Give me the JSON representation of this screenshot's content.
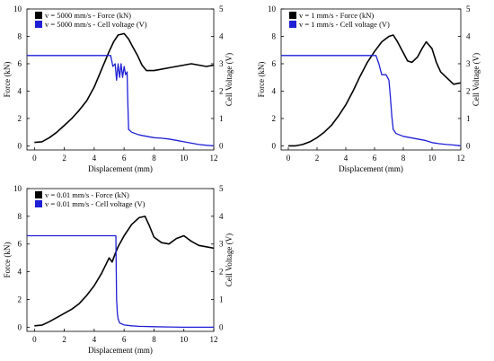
{
  "colors": {
    "force": "#000000",
    "voltage": "#1f1fd6"
  },
  "chart_data": [
    {
      "type": "line",
      "xlabel": "Displacement (mm)",
      "ylabel": "Force (kN)",
      "y2label": "Cell Voltage (V)",
      "xlim": [
        -0.5,
        12
      ],
      "ylim": [
        -0.3,
        10
      ],
      "y2lim": [
        -0.15,
        5
      ],
      "xticks": [
        0,
        2,
        4,
        6,
        8,
        10,
        12
      ],
      "yticks": [
        0,
        2,
        4,
        6,
        8,
        10
      ],
      "y2ticks": [
        0,
        1,
        2,
        3,
        4,
        5
      ],
      "legend": "top-left",
      "series": [
        {
          "name": "v = 5000 mm/s - Force (kN)",
          "axis": "left",
          "x": [
            0,
            0.5,
            1,
            1.5,
            2,
            2.5,
            3,
            3.5,
            4,
            4.5,
            5,
            5.3,
            5.6,
            6,
            6.3,
            6.6,
            6.9,
            7.2,
            7.5,
            8,
            8.5,
            9,
            9.5,
            10,
            10.5,
            11,
            11.5,
            12
          ],
          "y": [
            0.25,
            0.3,
            0.6,
            1.0,
            1.5,
            2.0,
            2.6,
            3.3,
            4.3,
            5.6,
            6.9,
            7.6,
            8.1,
            8.2,
            7.8,
            7.2,
            6.6,
            5.9,
            5.5,
            5.5,
            5.6,
            5.7,
            5.8,
            5.9,
            6.0,
            5.9,
            5.8,
            5.9
          ]
        },
        {
          "name": "v = 5000 mm/s - Cell voltage (V)",
          "axis": "right",
          "x": [
            -0.5,
            5.1,
            5.25,
            5.4,
            5.5,
            5.6,
            5.7,
            5.8,
            5.9,
            6.0,
            6.1,
            6.2,
            6.25,
            6.3,
            6.5,
            7,
            7.5,
            8,
            8.5,
            9,
            9.5,
            10,
            10.5,
            11,
            11.5,
            12
          ],
          "y": [
            3.3,
            3.3,
            2.9,
            3.0,
            2.4,
            3.0,
            2.5,
            3.0,
            2.5,
            2.9,
            2.6,
            2.7,
            1.6,
            0.6,
            0.5,
            0.4,
            0.35,
            0.3,
            0.28,
            0.25,
            0.2,
            0.15,
            0.1,
            0.05,
            0.02,
            0.0
          ]
        }
      ]
    },
    {
      "type": "line",
      "xlabel": "Displacement (mm)",
      "ylabel": "Force (kN)",
      "y2label": "Cell Voltage (V)",
      "xlim": [
        -0.5,
        12
      ],
      "ylim": [
        -0.3,
        10
      ],
      "y2lim": [
        -0.15,
        5
      ],
      "xticks": [
        0,
        2,
        4,
        6,
        8,
        10,
        12
      ],
      "yticks": [
        0,
        2,
        4,
        6,
        8,
        10
      ],
      "y2ticks": [
        0,
        1,
        2,
        3,
        4,
        5
      ],
      "legend": "top-left",
      "series": [
        {
          "name": "v = 1 mm/s - Force (kN)",
          "axis": "left",
          "x": [
            0,
            0.5,
            1,
            1.5,
            2,
            2.5,
            3,
            3.5,
            4,
            4.5,
            5,
            5.5,
            6,
            6.5,
            7,
            7.3,
            7.6,
            8,
            8.3,
            8.6,
            9,
            9.3,
            9.6,
            10,
            10.3,
            10.6,
            11,
            11.5,
            12
          ],
          "y": [
            0,
            0,
            0.1,
            0.3,
            0.6,
            1.0,
            1.5,
            2.2,
            3.0,
            4.0,
            5.1,
            6.1,
            6.9,
            7.6,
            8.0,
            8.1,
            7.6,
            6.8,
            6.2,
            6.1,
            6.5,
            7.1,
            7.6,
            7.1,
            6.1,
            5.4,
            5.0,
            4.5,
            4.6
          ]
        },
        {
          "name": "v = 1 mm/s - Cell voltage (V)",
          "axis": "right",
          "x": [
            -0.5,
            6.1,
            6.3,
            6.5,
            6.8,
            7.0,
            7.1,
            7.2,
            7.3,
            7.5,
            8,
            8.5,
            9,
            9.5,
            10,
            10.5,
            11,
            11.5,
            12
          ],
          "y": [
            3.3,
            3.3,
            3.0,
            2.6,
            2.6,
            2.4,
            1.8,
            1.1,
            0.6,
            0.45,
            0.35,
            0.3,
            0.25,
            0.2,
            0.12,
            0.08,
            0.05,
            0.03,
            0.0
          ]
        }
      ]
    },
    {
      "type": "line",
      "xlabel": "Displacement (mm)",
      "ylabel": "Force (kN)",
      "y2label": "Cell Voltage (V)",
      "xlim": [
        -0.5,
        12
      ],
      "ylim": [
        -0.3,
        10
      ],
      "y2lim": [
        -0.15,
        5
      ],
      "xticks": [
        0,
        2,
        4,
        6,
        8,
        10,
        12
      ],
      "yticks": [
        0,
        2,
        4,
        6,
        8,
        10
      ],
      "y2ticks": [
        0,
        1,
        2,
        3,
        4,
        5
      ],
      "legend": "top-left",
      "series": [
        {
          "name": "v = 0.01 mm/s - Force (kN)",
          "axis": "left",
          "x": [
            0,
            0.5,
            1,
            1.5,
            2,
            2.5,
            3,
            3.5,
            4,
            4.5,
            5,
            5.2,
            5.4,
            5.6,
            6,
            6.5,
            7,
            7.4,
            7.7,
            8,
            8.5,
            9,
            9.5,
            10,
            10.5,
            11,
            11.5,
            12
          ],
          "y": [
            0.1,
            0.15,
            0.4,
            0.7,
            1.0,
            1.3,
            1.7,
            2.3,
            3.0,
            3.9,
            5.0,
            4.7,
            5.3,
            5.8,
            6.6,
            7.4,
            7.9,
            8.0,
            7.3,
            6.5,
            6.1,
            6.0,
            6.4,
            6.6,
            6.2,
            5.9,
            5.8,
            5.7
          ]
        },
        {
          "name": "v = 0.01 mm/s - Cell voltage (V)",
          "axis": "right",
          "x": [
            -0.5,
            5.45,
            5.5,
            5.55,
            5.6,
            5.7,
            6,
            6.5,
            7,
            8,
            9,
            10,
            11,
            12
          ],
          "y": [
            3.3,
            3.3,
            1.0,
            0.5,
            0.3,
            0.15,
            0.08,
            0.05,
            0.03,
            0.02,
            0.01,
            0.0,
            0.0,
            0.0
          ]
        }
      ]
    }
  ]
}
